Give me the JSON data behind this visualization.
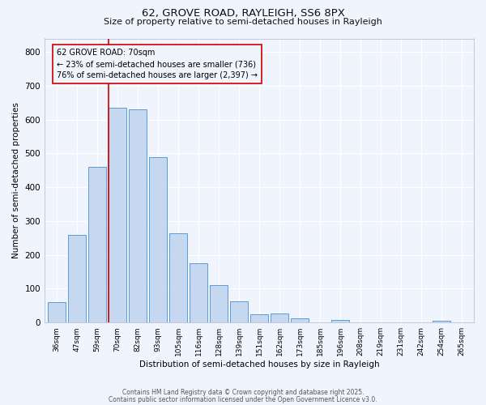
{
  "title": "62, GROVE ROAD, RAYLEIGH, SS6 8PX",
  "subtitle": "Size of property relative to semi-detached houses in Rayleigh",
  "xlabel": "Distribution of semi-detached houses by size in Rayleigh",
  "ylabel": "Number of semi-detached properties",
  "categories": [
    "36sqm",
    "47sqm",
    "59sqm",
    "70sqm",
    "82sqm",
    "93sqm",
    "105sqm",
    "116sqm",
    "128sqm",
    "139sqm",
    "151sqm",
    "162sqm",
    "173sqm",
    "185sqm",
    "196sqm",
    "208sqm",
    "219sqm",
    "231sqm",
    "242sqm",
    "254sqm",
    "265sqm"
  ],
  "values": [
    60,
    260,
    460,
    635,
    630,
    490,
    265,
    175,
    110,
    63,
    25,
    28,
    12,
    0,
    8,
    0,
    0,
    0,
    0,
    5,
    0
  ],
  "bar_color": "#c5d8f0",
  "bar_edge_color": "#5b9bd5",
  "highlight_bar_index": 3,
  "highlight_line_color": "#cc0000",
  "annotation_line1": "62 GROVE ROAD: 70sqm",
  "annotation_line2": "← 23% of semi-detached houses are smaller (736)",
  "annotation_line3": "76% of semi-detached houses are larger (2,397) →",
  "annotation_box_edge_color": "#cc0000",
  "ylim": [
    0,
    840
  ],
  "yticks": [
    0,
    100,
    200,
    300,
    400,
    500,
    600,
    700,
    800
  ],
  "background_color": "#f0f4fc",
  "plot_bg_color": "#f0f4fc",
  "grid_color": "#ffffff",
  "footer_line1": "Contains HM Land Registry data © Crown copyright and database right 2025.",
  "footer_line2": "Contains public sector information licensed under the Open Government Licence v3.0."
}
